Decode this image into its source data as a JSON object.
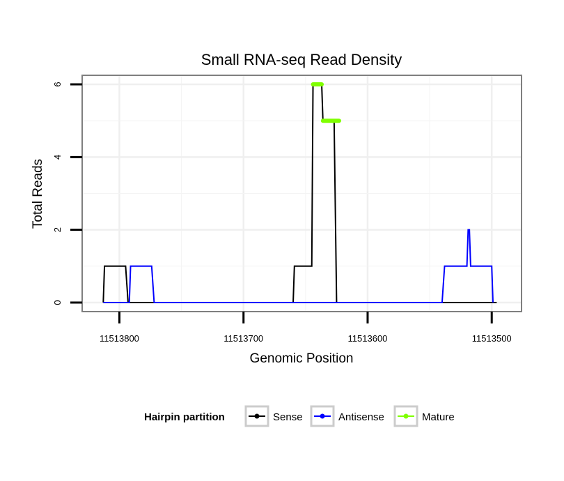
{
  "chart_data": {
    "type": "line",
    "title": "Small RNA-seq Read Density",
    "xlabel": "Genomic Position",
    "ylabel": "Total Reads",
    "x_reversed": true,
    "xlim": [
      11513830,
      11513476
    ],
    "ylim": [
      -0.25,
      6.25
    ],
    "x_ticks": [
      11513800,
      11513700,
      11513600,
      11513500
    ],
    "x_tick_labels": [
      "11513800",
      "11513700",
      "11513600",
      "11513500"
    ],
    "y_ticks": [
      0,
      2,
      4,
      6
    ],
    "y_tick_labels": [
      "0",
      "2",
      "4",
      "6"
    ],
    "grid": true,
    "legend": {
      "title": "Hairpin partition",
      "position": "bottom",
      "entries": [
        {
          "label": "Sense",
          "color": "#000000"
        },
        {
          "label": "Antisense",
          "color": "#0000ff"
        },
        {
          "label": "Mature",
          "color": "#7fff00"
        }
      ]
    },
    "series": [
      {
        "name": "Sense",
        "color": "#000000",
        "x": [
          11513813,
          11513812,
          11513795,
          11513793,
          11513660,
          11513659,
          11513645,
          11513644,
          11513637,
          11513636,
          11513627,
          11513625,
          11513496
        ],
        "y": [
          0,
          1,
          1,
          0,
          0,
          1,
          1,
          6,
          6,
          5,
          5,
          0,
          0
        ]
      },
      {
        "name": "Antisense",
        "color": "#0000ff",
        "x": [
          11513813,
          11513792,
          11513791,
          11513774,
          11513772,
          11513540,
          11513538,
          11513520,
          11513519,
          11513518,
          11513517,
          11513500,
          11513499
        ],
        "y": [
          0,
          0,
          1,
          1,
          0,
          0,
          1,
          1,
          2,
          2,
          1,
          1,
          0
        ]
      },
      {
        "name": "Mature",
        "color": "#7fff00",
        "segments": [
          {
            "x": [
              11513644,
              11513637
            ],
            "y": [
              6,
              6
            ]
          },
          {
            "x": [
              11513636,
              11513623
            ],
            "y": [
              5,
              5
            ]
          }
        ]
      }
    ]
  }
}
